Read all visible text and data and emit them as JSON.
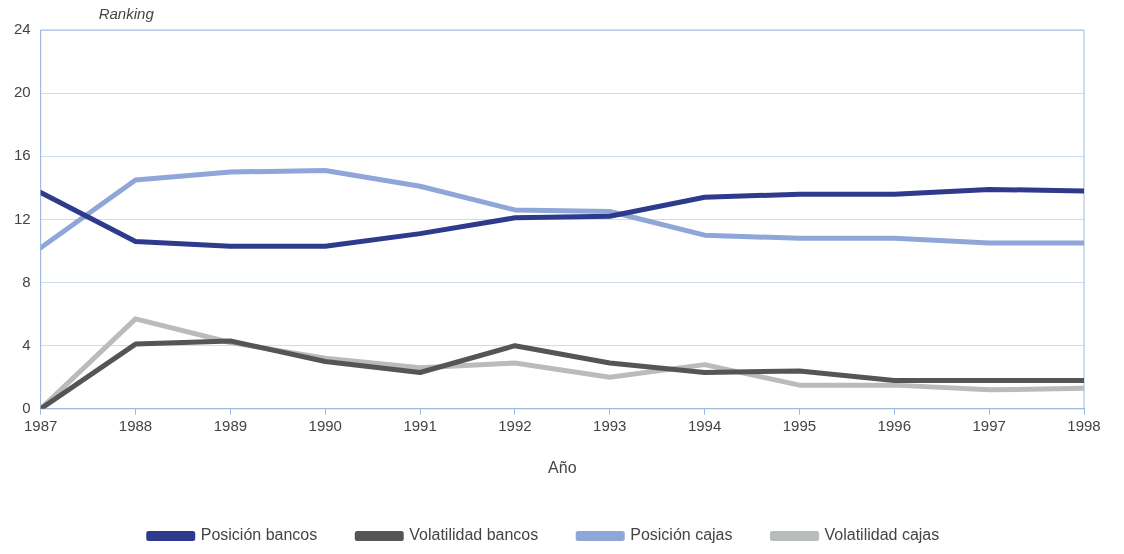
{
  "chart_data": {
    "type": "line",
    "xlabel": "Año",
    "ylabel": "Ranking",
    "x": [
      1987,
      1988,
      1989,
      1990,
      1991,
      1992,
      1993,
      1994,
      1995,
      1996,
      1997,
      1998
    ],
    "xlim": [
      1987,
      1998
    ],
    "xticks": [
      1987,
      1988,
      1989,
      1990,
      1991,
      1992,
      1993,
      1994,
      1995,
      1996,
      1997,
      1998
    ],
    "ylim": [
      0,
      24
    ],
    "yticks": [
      0,
      4,
      8,
      12,
      16,
      20,
      24
    ],
    "grid": "y",
    "legend": "bottom",
    "marker": "none",
    "line_style": "solid",
    "series": [
      {
        "name": "Posición bancos",
        "color": "#2e3a8c",
        "values": [
          13.7,
          10.6,
          10.3,
          10.3,
          11.1,
          12.1,
          12.2,
          13.4,
          13.6,
          13.6,
          13.9,
          13.8
        ]
      },
      {
        "name": "Volatilidad bancos",
        "color": "#555555",
        "values": [
          0,
          4.1,
          4.3,
          3.0,
          2.3,
          4.0,
          2.9,
          2.3,
          2.4,
          1.8,
          1.8,
          1.8
        ]
      },
      {
        "name": "Posición cajas",
        "color": "#8ea6d8",
        "values": [
          10.2,
          14.5,
          15.0,
          15.1,
          14.1,
          12.6,
          12.5,
          11.0,
          10.8,
          10.8,
          10.5,
          10.5
        ]
      },
      {
        "name": "Volatilidad cajas",
        "color": "#b9bcbc",
        "values": [
          0,
          5.7,
          4.2,
          3.2,
          2.6,
          2.9,
          2.0,
          2.8,
          1.5,
          1.5,
          1.2,
          1.3
        ]
      }
    ]
  }
}
